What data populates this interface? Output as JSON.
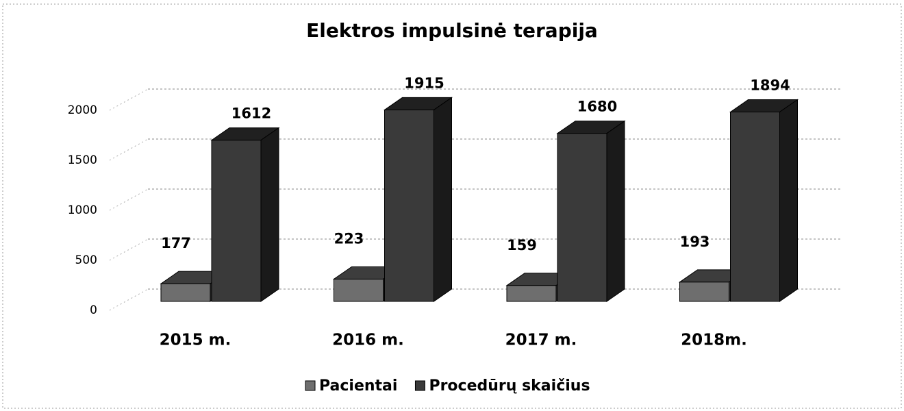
{
  "chart_data": {
    "type": "bar3d",
    "title": "Elektros impulsinė terapija",
    "categories": [
      "2015 m.",
      "2016 m.",
      "2017 m.",
      "2018m."
    ],
    "series": [
      {
        "name": "Pacientai",
        "color": "#6e6e6e",
        "values": [
          177,
          223,
          159,
          193
        ]
      },
      {
        "name": "Procedūrų skaičius",
        "color": "#3a3a3a",
        "values": [
          1612,
          1915,
          1680,
          1894
        ]
      }
    ],
    "ylim": [
      0,
      2000
    ],
    "yticks": [
      0,
      500,
      1000,
      1500,
      2000
    ],
    "grid": true,
    "legend": "bottom"
  }
}
